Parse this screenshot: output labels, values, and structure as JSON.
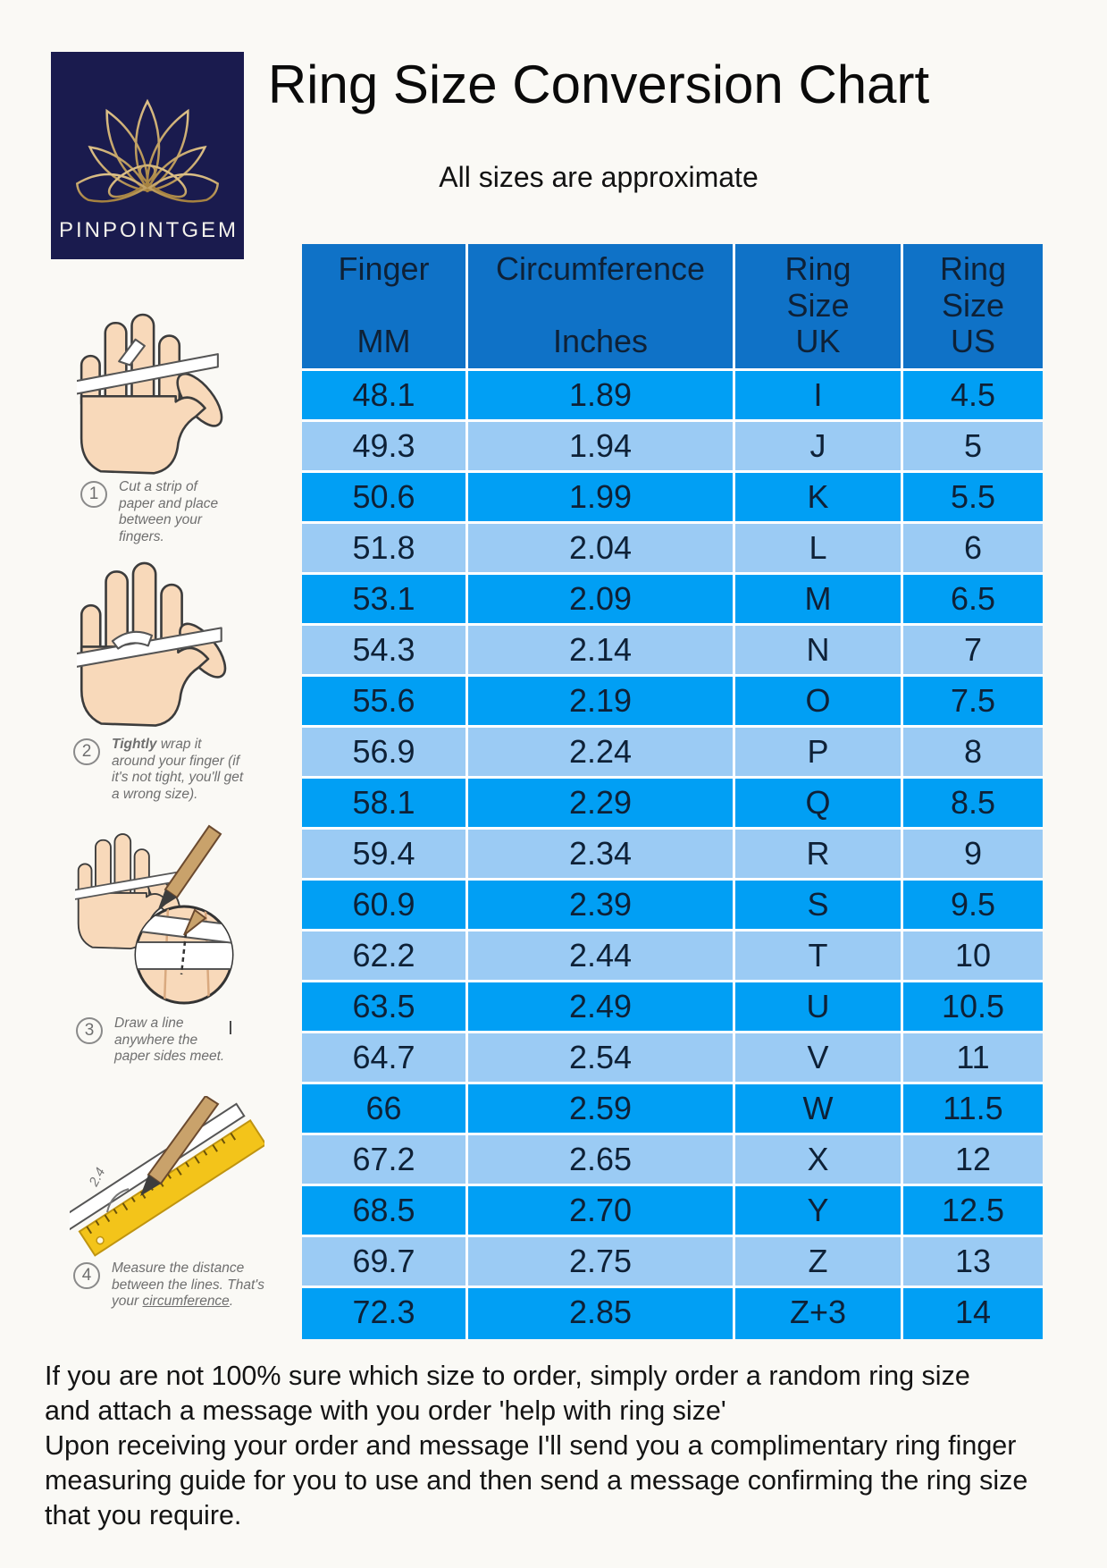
{
  "brand": {
    "name": "PINPOINTGEM"
  },
  "header": {
    "title": "Ring Size Conversion Chart",
    "subtitle": "All sizes are approximate"
  },
  "table": {
    "headers": [
      {
        "lines": [
          "Finger",
          "MM"
        ]
      },
      {
        "lines": [
          "Circumference",
          "Inches"
        ]
      },
      {
        "lines": [
          "Ring",
          "Size",
          "UK"
        ]
      },
      {
        "lines": [
          "Ring",
          "Size",
          "US"
        ]
      }
    ],
    "rows": [
      {
        "mm": "48.1",
        "inches": "1.89",
        "uk": "I",
        "us": "4.5"
      },
      {
        "mm": "49.3",
        "inches": "1.94",
        "uk": "J",
        "us": "5"
      },
      {
        "mm": "50.6",
        "inches": "1.99",
        "uk": "K",
        "us": "5.5"
      },
      {
        "mm": "51.8",
        "inches": "2.04",
        "uk": "L",
        "us": "6"
      },
      {
        "mm": "53.1",
        "inches": "2.09",
        "uk": "M",
        "us": "6.5"
      },
      {
        "mm": "54.3",
        "inches": "2.14",
        "uk": "N",
        "us": "7"
      },
      {
        "mm": "55.6",
        "inches": "2.19",
        "uk": "O",
        "us": "7.5"
      },
      {
        "mm": "56.9",
        "inches": "2.24",
        "uk": "P",
        "us": "8"
      },
      {
        "mm": "58.1",
        "inches": "2.29",
        "uk": "Q",
        "us": "8.5"
      },
      {
        "mm": "59.4",
        "inches": "2.34",
        "uk": "R",
        "us": "9"
      },
      {
        "mm": "60.9",
        "inches": "2.39",
        "uk": "S",
        "us": "9.5"
      },
      {
        "mm": "62.2",
        "inches": "2.44",
        "uk": "T",
        "us": "10"
      },
      {
        "mm": "63.5",
        "inches": "2.49",
        "uk": "U",
        "us": "10.5"
      },
      {
        "mm": "64.7",
        "inches": "2.54",
        "uk": "V",
        "us": "11"
      },
      {
        "mm": "66",
        "inches": "2.59",
        "uk": "W",
        "us": "11.5"
      },
      {
        "mm": "67.2",
        "inches": "2.65",
        "uk": "X",
        "us": "12"
      },
      {
        "mm": "68.5",
        "inches": "2.70",
        "uk": "Y",
        "us": "12.5"
      },
      {
        "mm": "69.7",
        "inches": "2.75",
        "uk": "Z",
        "us": "13"
      },
      {
        "mm": "72.3",
        "inches": "2.85",
        "uk": "Z+3",
        "us": "14"
      }
    ]
  },
  "steps": [
    {
      "num": "1",
      "text": "Cut a strip of paper and place between your fingers."
    },
    {
      "num": "2",
      "lead": "Tightly",
      "text": " wrap it around your finger (if it's not tight, you'll get a wrong size)."
    },
    {
      "num": "3",
      "text": "Draw a line anywhere the paper sides meet."
    },
    {
      "num": "4",
      "pre": "Measure the distance between the lines. That's your ",
      "underline": "circumference",
      "post": "."
    }
  ],
  "footer": {
    "lines": [
      "If you are not 100% sure which size to order, simply order a random ring size",
      "and attach a message with you order 'help with ring size'",
      "Upon receiving your order and message I'll send you a complimentary ring finger",
      "measuring guide for you to use and then send a message confirming the ring size",
      "that you require."
    ]
  },
  "colors": {
    "page_bg": "#faf9f5",
    "logo_navy": "#1a1b4e",
    "logo_gold": "#c8a668",
    "header_blue": "#0f72c7",
    "row_bright": "#019ff4",
    "row_light": "#9bcbf4",
    "table_text": "#0e2137",
    "step_text": "#6f6f6f",
    "ruler_yellow": "#f3c41a"
  }
}
